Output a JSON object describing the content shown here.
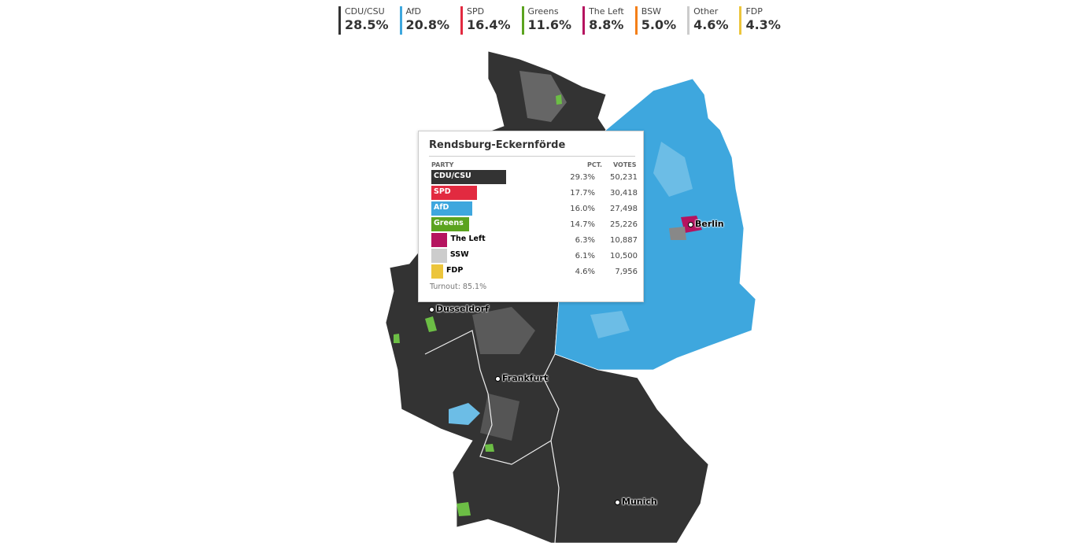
{
  "legend": [
    {
      "name": "CDU/CSU",
      "value": "28.5%",
      "color": "#333333"
    },
    {
      "name": "AfD",
      "value": "20.8%",
      "color": "#3ea7de"
    },
    {
      "name": "SPD",
      "value": "16.4%",
      "color": "#e22a40"
    },
    {
      "name": "Greens",
      "value": "11.6%",
      "color": "#5ba31f"
    },
    {
      "name": "The Left",
      "value": "8.8%",
      "color": "#b5135f"
    },
    {
      "name": "BSW",
      "value": "5.0%",
      "color": "#f47f18"
    },
    {
      "name": "Other",
      "value": "4.6%",
      "color": "#cccccc"
    },
    {
      "name": "FDP",
      "value": "4.3%",
      "color": "#ecc53c"
    }
  ],
  "cities": {
    "berlin": "Berlin",
    "dusseldorf": "Dusseldorf",
    "frankfurt": "Frankfurt",
    "munich": "Munich"
  },
  "tooltip": {
    "title": "Rendsburg-Eckernförde",
    "col_party": "PARTY",
    "col_pct": "PCT.",
    "col_votes": "VOTES",
    "rows": [
      {
        "party": "CDU/CSU",
        "pct": "29.3%",
        "votes": "50,231",
        "color": "#333333",
        "share": 29.3,
        "inside": true
      },
      {
        "party": "SPD",
        "pct": "17.7%",
        "votes": "30,418",
        "color": "#e22a40",
        "share": 17.7,
        "inside": true
      },
      {
        "party": "AfD",
        "pct": "16.0%",
        "votes": "27,498",
        "color": "#3ea7de",
        "share": 16.0,
        "inside": true
      },
      {
        "party": "Greens",
        "pct": "14.7%",
        "votes": "25,226",
        "color": "#5ba31f",
        "share": 14.7,
        "inside": true
      },
      {
        "party": "The Left",
        "pct": "6.3%",
        "votes": "10,887",
        "color": "#b5135f",
        "share": 6.3,
        "inside": false
      },
      {
        "party": "SSW",
        "pct": "6.1%",
        "votes": "10,500",
        "color": "#cccccc",
        "share": 6.1,
        "inside": false
      },
      {
        "party": "FDP",
        "pct": "4.6%",
        "votes": "7,956",
        "color": "#ecc53c",
        "share": 4.6,
        "inside": false
      }
    ],
    "turnout": "Turnout: 85.1%"
  }
}
